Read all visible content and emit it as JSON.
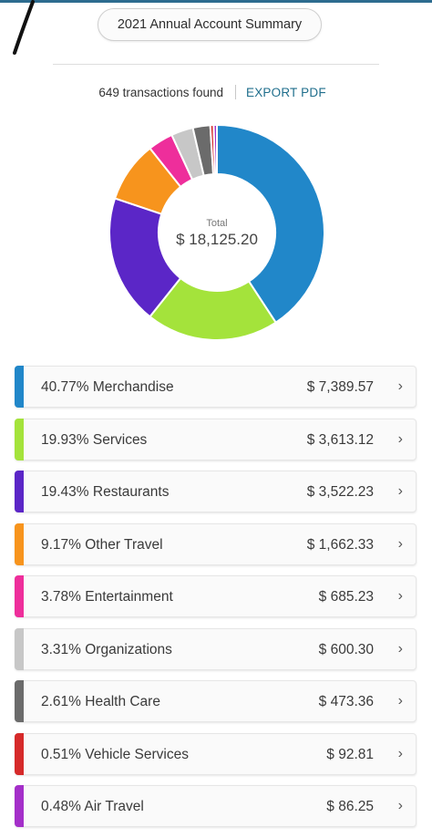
{
  "header": {
    "title": "2021 Annual Account Summary"
  },
  "summary": {
    "transactions": "649 transactions found",
    "export_label": "EXPORT PDF"
  },
  "donut": {
    "total_label": "Total",
    "total_value": "$ 18,125.20"
  },
  "colors": {
    "merchandise": "#2187c9",
    "services": "#a4e33b",
    "restaurants": "#5b26c7",
    "other_travel": "#f7941d",
    "entertainment": "#ee2e9b",
    "organizations": "#c7c7c7",
    "health_care": "#6b6b6b",
    "vehicle_services": "#d62a2a",
    "air_travel": "#a42fc9"
  },
  "categories": [
    {
      "label": "40.77% Merchandise",
      "amount": "$ 7,389.57",
      "percent": 40.77,
      "color": "#2187c9"
    },
    {
      "label": "19.93% Services",
      "amount": "$ 3,613.12",
      "percent": 19.93,
      "color": "#a4e33b"
    },
    {
      "label": "19.43% Restaurants",
      "amount": "$ 3,522.23",
      "percent": 19.43,
      "color": "#5b26c7"
    },
    {
      "label": "9.17% Other Travel",
      "amount": "$ 1,662.33",
      "percent": 9.17,
      "color": "#f7941d"
    },
    {
      "label": "3.78% Entertainment",
      "amount": "$ 685.23",
      "percent": 3.78,
      "color": "#ee2e9b"
    },
    {
      "label": "3.31% Organizations",
      "amount": "$ 600.30",
      "percent": 3.31,
      "color": "#c7c7c7"
    },
    {
      "label": "2.61% Health Care",
      "amount": "$ 473.36",
      "percent": 2.61,
      "color": "#6b6b6b"
    },
    {
      "label": "0.51% Vehicle Services",
      "amount": "$ 92.81",
      "percent": 0.51,
      "color": "#d62a2a"
    },
    {
      "label": "0.48% Air Travel",
      "amount": "$ 86.25",
      "percent": 0.48,
      "color": "#a42fc9"
    }
  ],
  "chevron": "›"
}
